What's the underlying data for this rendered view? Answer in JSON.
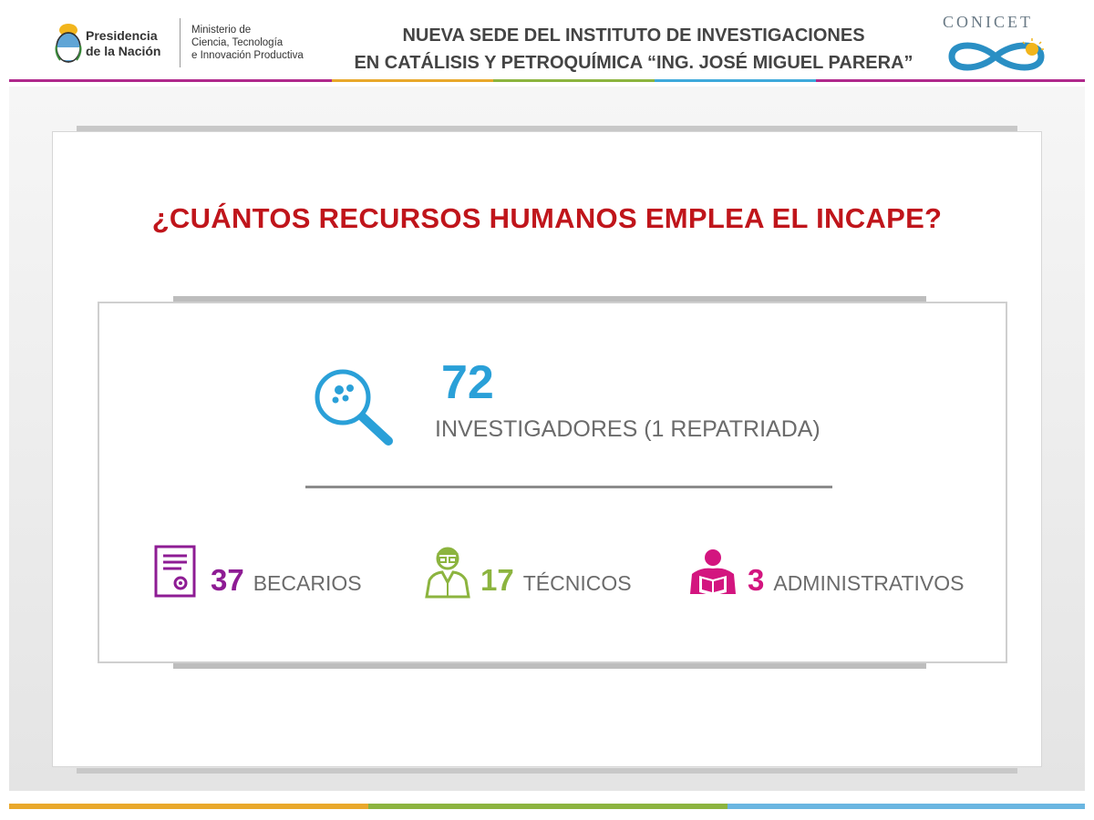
{
  "header": {
    "presidencia": "Presidencia\nde la Nación",
    "ministerio": "Ministerio de\nCiencia, Tecnología\ne Innovación Productiva",
    "title_line1": "NUEVA SEDE DEL INSTITUTO DE INVESTIGACIONES",
    "title_line2": "EN CATÁLISIS Y PETROQUÍMICA “ING. JOSÉ MIGUEL PARERA”",
    "conicet": "CONICET"
  },
  "main": {
    "question": "¿CUÁNTOS RECURSOS HUMANOS EMPLEA EL INCAPE?",
    "investigadores": {
      "number": "72",
      "label": "INVESTIGADORES (1 REPATRIADA)",
      "icon": "magnifier-icon",
      "color": "#2aa0d8"
    },
    "stats": [
      {
        "number": "37",
        "label": "BECARIOS",
        "icon": "certificate-icon",
        "color": "#8e1c94"
      },
      {
        "number": "17",
        "label": "TÉCNICOS",
        "icon": "technician-icon",
        "color": "#8cb43f"
      },
      {
        "number": "3",
        "label": "ADMINISTRATIVOS",
        "icon": "reading-person-icon",
        "color": "#d3157f"
      }
    ]
  },
  "colors": {
    "question": "#c0151b",
    "accent_blue": "#2aa0d8",
    "accent_purple": "#8e1c94",
    "accent_green": "#8cb43f",
    "accent_pink": "#d3157f"
  }
}
